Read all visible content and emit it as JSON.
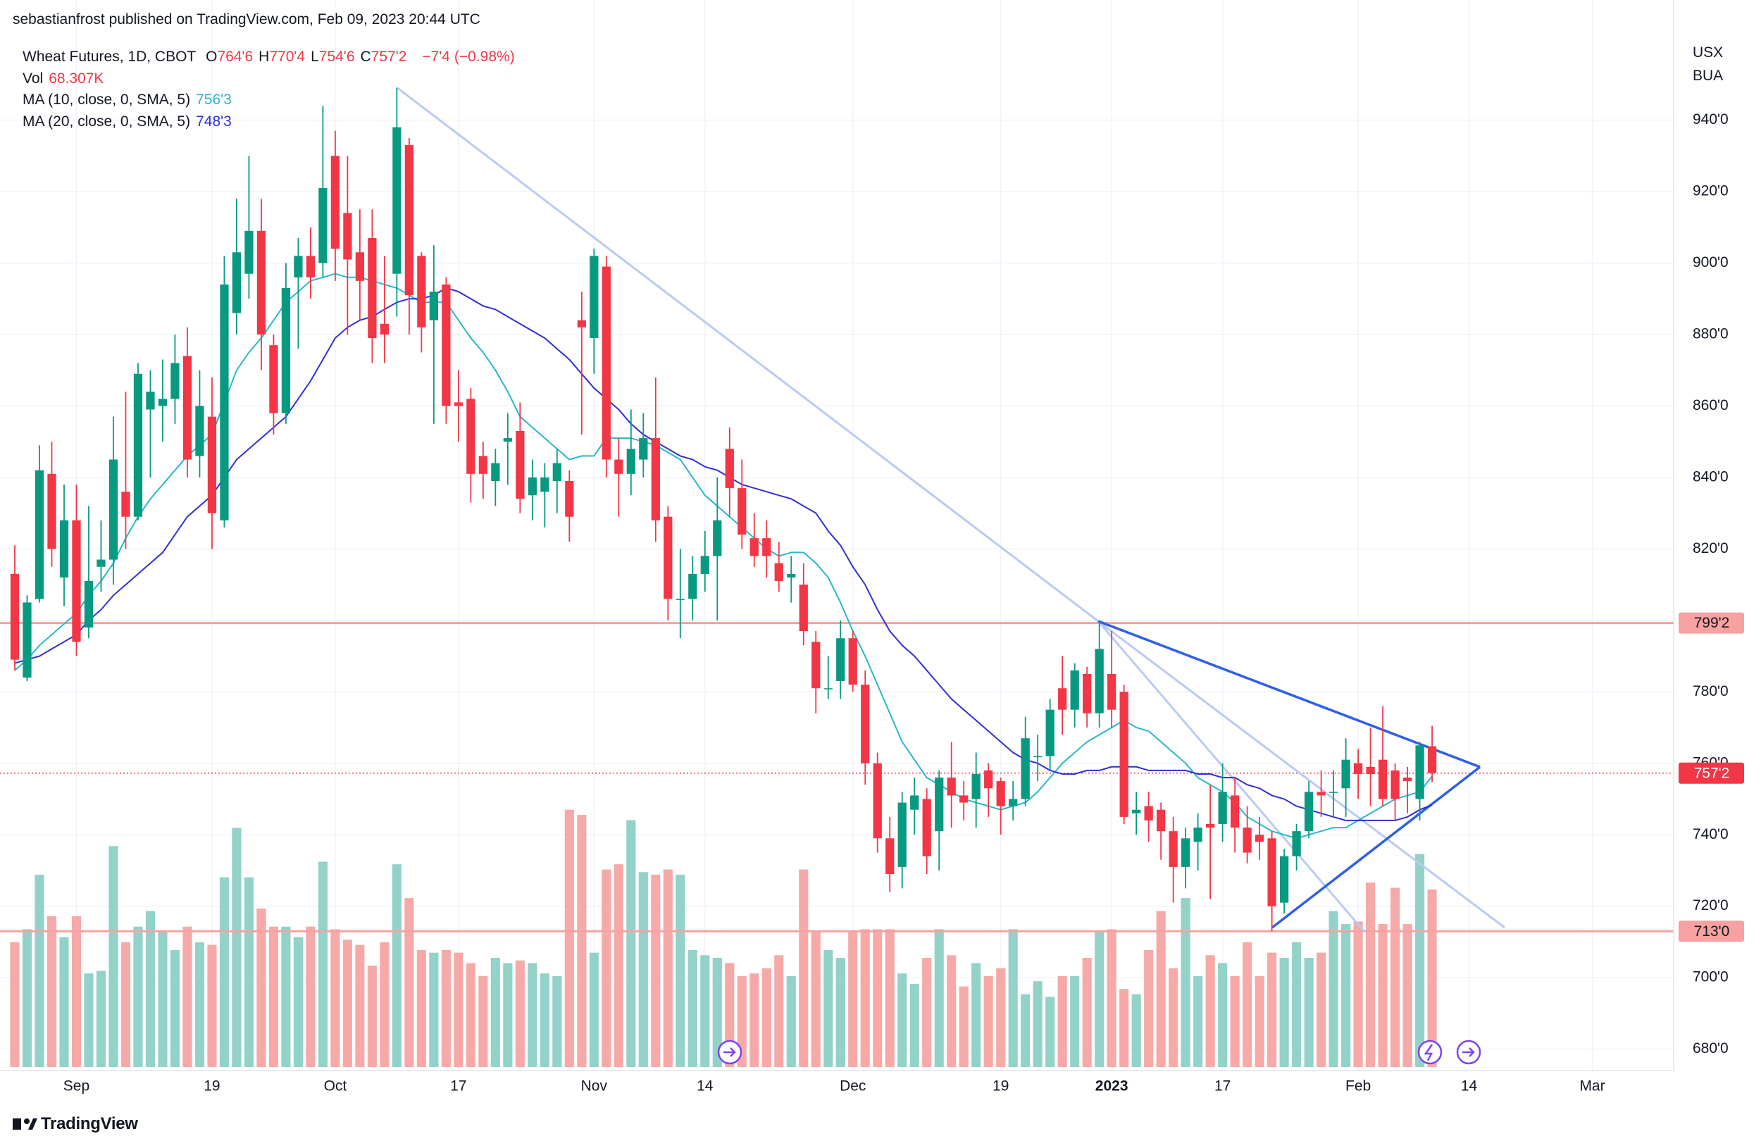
{
  "chart_data": {
    "type": "candlestick",
    "published": "sebastianfrost published on TradingView.com, Feb 09, 2023 20:44 UTC",
    "symbol": "Wheat Futures, 1D, CBOT",
    "ohlc_legend": [
      {
        "key": "O",
        "value": 764.75,
        "label": "764'6"
      },
      {
        "key": "H",
        "value": 770.5,
        "label": "770'4"
      },
      {
        "key": "L",
        "value": 754.75,
        "label": "754'6"
      },
      {
        "key": "C",
        "value": 757.25,
        "label": "757'2"
      }
    ],
    "change": {
      "value": -7.5,
      "label": "−7'4"
    },
    "change_pct": {
      "value": -0.98,
      "label": "(−0.98%)"
    },
    "volume_legend": {
      "name": "Vol",
      "value": 68.307,
      "label": "68.307K"
    },
    "units": [
      "USX",
      "BUA"
    ],
    "brand": "TradingView",
    "colors": {
      "up": "#089981",
      "down": "#f23645",
      "up_volume": "#92d2c8",
      "down_volume": "#f7a9a7",
      "level": "#f7a1a1"
    },
    "xlim": [
      -1.2,
      134.6
    ],
    "xticks": [
      {
        "value": 5,
        "label": "Sep"
      },
      {
        "value": 16,
        "label": "19"
      },
      {
        "value": 26,
        "label": "Oct"
      },
      {
        "value": 36,
        "label": "17"
      },
      {
        "value": 47,
        "label": "Nov"
      },
      {
        "value": 56,
        "label": "14"
      },
      {
        "value": 68,
        "label": "Dec"
      },
      {
        "value": 80,
        "label": "19"
      },
      {
        "value": 89,
        "label": "2023"
      },
      {
        "value": 98,
        "label": "17"
      },
      {
        "value": 109,
        "label": "Feb"
      },
      {
        "value": 118,
        "label": "14"
      },
      {
        "value": 128,
        "label": "Mar"
      }
    ],
    "ylim": [
      675,
      961
    ],
    "yticks": [
      {
        "value": 680,
        "label": "680'0"
      },
      {
        "value": 700,
        "label": "700'0"
      },
      {
        "value": 720,
        "label": "720'0"
      },
      {
        "value": 740,
        "label": "740'0"
      },
      {
        "value": 760,
        "label": "760'0"
      },
      {
        "value": 780,
        "label": "780'0"
      },
      {
        "value": 800,
        "label": "800'0"
      },
      {
        "value": 820,
        "label": "820'0"
      },
      {
        "value": 840,
        "label": "840'0"
      },
      {
        "value": 860,
        "label": "860'0"
      },
      {
        "value": 880,
        "label": "880'0"
      },
      {
        "value": 900,
        "label": "900'0"
      },
      {
        "value": 920,
        "label": "920'0"
      },
      {
        "value": 940,
        "label": "940'0"
      }
    ],
    "grid": true,
    "levels": [
      {
        "value": 799.25,
        "label": "799'2"
      },
      {
        "value": 713,
        "label": "713'0"
      }
    ],
    "last_price": {
      "value": 757.25,
      "label": "757'2"
    },
    "open": [
      813,
      784,
      806,
      841,
      812,
      828,
      798,
      815,
      817,
      836,
      829,
      859,
      860,
      862,
      874,
      846,
      857,
      828,
      886,
      897,
      909,
      877,
      858,
      896,
      902,
      900,
      930,
      914,
      903,
      907,
      883,
      897,
      933,
      902,
      884,
      894,
      861,
      862,
      846,
      839,
      850,
      853,
      835,
      836,
      839,
      839,
      884,
      879,
      899,
      845,
      841,
      845,
      851,
      829,
      806,
      806,
      813,
      818,
      848,
      837,
      823,
      823,
      816,
      812,
      810,
      794,
      781,
      783,
      795,
      782,
      760,
      739,
      731,
      747,
      750,
      741,
      756,
      751,
      750,
      758,
      755,
      748,
      750,
      762,
      762,
      781,
      775,
      785,
      774,
      785,
      780,
      746,
      748,
      747,
      741,
      731,
      738,
      743,
      743,
      751,
      742,
      740,
      739,
      721,
      734,
      741,
      752,
      752,
      753,
      760,
      759,
      761,
      758,
      756,
      750,
      764.75
    ],
    "high": [
      821,
      807,
      849,
      850,
      838,
      838,
      832,
      828,
      857,
      864,
      872,
      870,
      873,
      880,
      882,
      870,
      868,
      902,
      918,
      930,
      918,
      880,
      900,
      907,
      910,
      944,
      937,
      930,
      915,
      915,
      902,
      949,
      935,
      903,
      905,
      896,
      870,
      865,
      850,
      848,
      858,
      861,
      845,
      844,
      848,
      842,
      892,
      904,
      902,
      851,
      859,
      858,
      868,
      832,
      820,
      818,
      825,
      840,
      854,
      845,
      830,
      828,
      822,
      818,
      816,
      797,
      790,
      800,
      797,
      786,
      763,
      745,
      752,
      756,
      753,
      758,
      766,
      755,
      763,
      760,
      756,
      755,
      773,
      768,
      778,
      790,
      788,
      787,
      800,
      797,
      782,
      752,
      752,
      749,
      745,
      742,
      746,
      754,
      760,
      756,
      748,
      745,
      741,
      736,
      743,
      755,
      758,
      758,
      767,
      764,
      770,
      776,
      760,
      759,
      766,
      770.5
    ],
    "low": [
      786,
      783,
      805,
      815,
      804,
      790,
      795,
      808,
      810,
      820,
      828,
      840,
      850,
      855,
      840,
      840,
      820,
      826,
      880,
      890,
      870,
      852,
      855,
      876,
      890,
      896,
      895,
      880,
      884,
      872,
      872,
      885,
      880,
      875,
      855,
      855,
      850,
      833,
      834,
      832,
      838,
      830,
      828,
      826,
      830,
      822,
      852,
      869,
      840,
      829,
      835,
      840,
      822,
      800,
      795,
      800,
      808,
      800,
      829,
      820,
      815,
      812,
      808,
      805,
      793,
      774,
      778,
      778,
      780,
      754,
      735,
      724,
      725,
      740,
      729,
      730,
      742,
      744,
      742,
      745,
      740,
      744,
      748,
      755,
      758,
      768,
      770,
      770,
      770,
      770,
      743,
      740,
      738,
      733,
      721,
      725,
      730,
      722,
      738,
      735,
      732,
      733,
      713,
      718,
      730,
      739,
      745,
      745,
      745,
      750,
      748,
      748,
      744,
      746,
      744,
      754.75
    ],
    "close": [
      789,
      805,
      842,
      820,
      828,
      794,
      811,
      817,
      845,
      829,
      869,
      864,
      862,
      872,
      845,
      860,
      830,
      894,
      903,
      909,
      880,
      858,
      893,
      902,
      896,
      921,
      904,
      901,
      895,
      879,
      880,
      938,
      891,
      882,
      892,
      860,
      860,
      841,
      841,
      844,
      851,
      834,
      840,
      840,
      844,
      829,
      882,
      902,
      845,
      841,
      848,
      851,
      828,
      806,
      806,
      813,
      818,
      828,
      837,
      824,
      818,
      818,
      811,
      813,
      797,
      781,
      781,
      795,
      782,
      760,
      739,
      729,
      749,
      751,
      734,
      756,
      751,
      749,
      757,
      753,
      748,
      750,
      767,
      762,
      775,
      775,
      786,
      774,
      792,
      775,
      745,
      747,
      744,
      741,
      731,
      739,
      742,
      742,
      752,
      742,
      735,
      738,
      720,
      734,
      741,
      752,
      751,
      752,
      761,
      757,
      757,
      750,
      750,
      755,
      765,
      757.25
    ],
    "volume": [
      48,
      53,
      74,
      58,
      50,
      58,
      36,
      37,
      85,
      48,
      54,
      60,
      52,
      45,
      54,
      48,
      47,
      73,
      92,
      73,
      61,
      54,
      54,
      50,
      54,
      79,
      53,
      49,
      47,
      39,
      48,
      78,
      65,
      45,
      44,
      45,
      44,
      40,
      35,
      42,
      40,
      41,
      40,
      36,
      35,
      99,
      97,
      44,
      76,
      78,
      95,
      75,
      74,
      76,
      74,
      45,
      43,
      42,
      40,
      35,
      36,
      38,
      43,
      35,
      76,
      52,
      45,
      42,
      52,
      53,
      53,
      53,
      36,
      32,
      42,
      53,
      43,
      31,
      40,
      35,
      38,
      53,
      28,
      33,
      27,
      35,
      35,
      42,
      52,
      53,
      30,
      28,
      45,
      60,
      38,
      65,
      35,
      43,
      40,
      35,
      48,
      35,
      44,
      42,
      48,
      42,
      44,
      60,
      55,
      56,
      71,
      55,
      69,
      55,
      82,
      68.307
    ],
    "series": [
      {
        "name": "MA (10, close, 0, SMA, 5)",
        "color": "#26b8c8",
        "last": {
          "value": 756.375,
          "label": "756'3"
        },
        "values": [
          786,
          789,
          793,
          796,
          799,
          802,
          807,
          811,
          816,
          823,
          829,
          834,
          838,
          842,
          846,
          849,
          852,
          861,
          870,
          875,
          879,
          884,
          889,
          892,
          895,
          896,
          897,
          896,
          896,
          895,
          894,
          893,
          891,
          889,
          889,
          889,
          884,
          879,
          875,
          870,
          864,
          857,
          854,
          851,
          848,
          845,
          846,
          846,
          851,
          851,
          851,
          850,
          849,
          847,
          845,
          840,
          835,
          832,
          829,
          826,
          823,
          820,
          818,
          819,
          819,
          816,
          812,
          805,
          797,
          790,
          782,
          774,
          766,
          761,
          756,
          754,
          752,
          750,
          749,
          748,
          747,
          748,
          749,
          752,
          756,
          760,
          763,
          766,
          768,
          770,
          772,
          770,
          769,
          766,
          763,
          760,
          756,
          754,
          752,
          749,
          745,
          743,
          741,
          740,
          739,
          740,
          741,
          742,
          742,
          744,
          746,
          748,
          750,
          751,
          752,
          756.375
        ]
      },
      {
        "name": "MA (20, close, 0, SMA, 5)",
        "color": "#2f2fd8",
        "last": {
          "value": 748.375,
          "label": "748'3"
        },
        "values": [
          788,
          789,
          790,
          792,
          794,
          796,
          800,
          803,
          807,
          810,
          813,
          816,
          819,
          824,
          829,
          832,
          835,
          840,
          845,
          848,
          851,
          854,
          857,
          862,
          867,
          873,
          879,
          882,
          884,
          885,
          887,
          889,
          890,
          890,
          891,
          893,
          892,
          890,
          888,
          887,
          885,
          883,
          881,
          879,
          876,
          873,
          869,
          865,
          862,
          859,
          855,
          852,
          850,
          848,
          846,
          845,
          843,
          842,
          840,
          838,
          837,
          836,
          835,
          834,
          832,
          830,
          825,
          821,
          815,
          810,
          803,
          797,
          793,
          790,
          786,
          782,
          778,
          775,
          772,
          769,
          766,
          763,
          761,
          760,
          758,
          757,
          757,
          758,
          758,
          759,
          759,
          759,
          758,
          758,
          758,
          758,
          757,
          757,
          756,
          756,
          754,
          753,
          751,
          750,
          748,
          747,
          746,
          745,
          744,
          744,
          744,
          744,
          744,
          745,
          747,
          748.375
        ]
      }
    ]
  }
}
